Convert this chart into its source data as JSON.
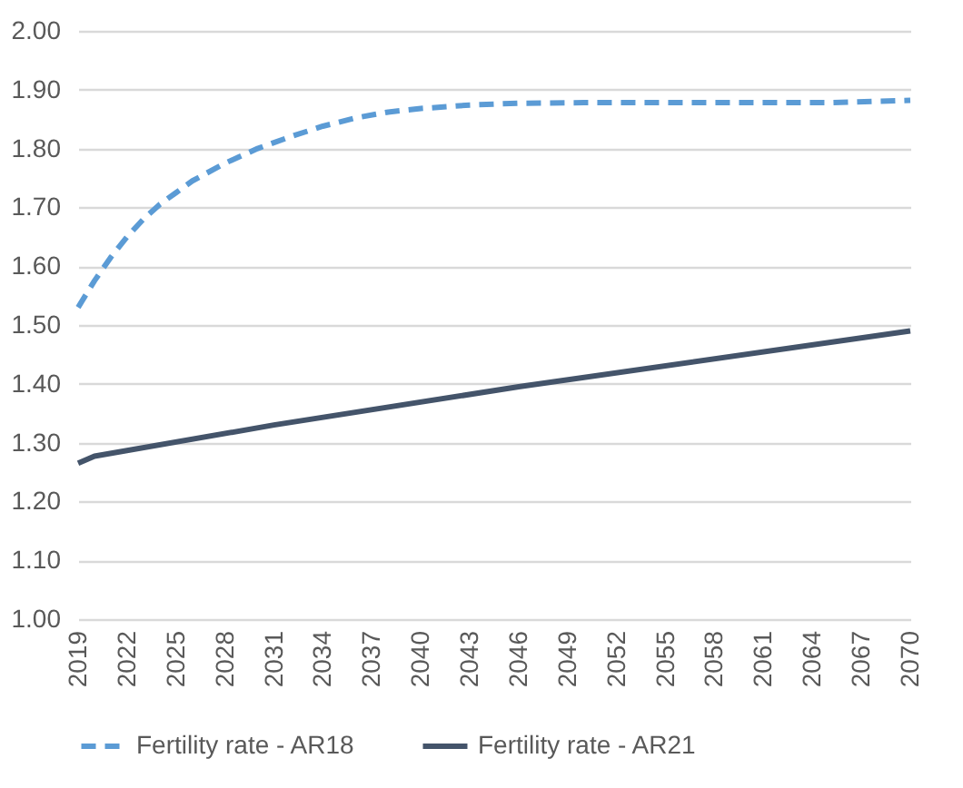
{
  "chart_data": {
    "type": "line",
    "xlim": [
      2019,
      2070
    ],
    "xticks": [
      2019,
      2022,
      2025,
      2028,
      2031,
      2034,
      2037,
      2040,
      2043,
      2046,
      2049,
      2052,
      2055,
      2058,
      2061,
      2064,
      2067,
      2070
    ],
    "ylim": [
      1.0,
      2.0
    ],
    "yticks": [
      {
        "value": 1.0,
        "label": "1.00"
      },
      {
        "value": 1.1,
        "label": "1.10"
      },
      {
        "value": 1.2,
        "label": "1.20"
      },
      {
        "value": 1.3,
        "label": "1.30"
      },
      {
        "value": 1.4,
        "label": "1.40"
      },
      {
        "value": 1.5,
        "label": "1.50"
      },
      {
        "value": 1.6,
        "label": "1.60"
      },
      {
        "value": 1.7,
        "label": "1.70"
      },
      {
        "value": 1.8,
        "label": "1.80"
      },
      {
        "value": 1.9,
        "label": "1.90"
      },
      {
        "value": 2.0,
        "label": "2.00"
      }
    ],
    "grid": "y",
    "legend": "bottom",
    "series": [
      {
        "name": "Fertility rate - AR18",
        "color": "#5b9bd5",
        "line_style": "dashed",
        "x": [
          2019,
          2020,
          2021,
          2022,
          2023,
          2024,
          2025,
          2026,
          2028,
          2030,
          2032,
          2034,
          2036,
          2038,
          2040,
          2043,
          2046,
          2050,
          2060,
          2065,
          2070
        ],
        "values": [
          1.53,
          1.575,
          1.615,
          1.65,
          1.68,
          1.705,
          1.725,
          1.745,
          1.775,
          1.8,
          1.82,
          1.838,
          1.852,
          1.862,
          1.868,
          1.874,
          1.877,
          1.878,
          1.878,
          1.878,
          1.882
        ]
      },
      {
        "name": "Fertility rate - AR21",
        "color": "#44546a",
        "line_style": "solid",
        "x": [
          2019,
          2020,
          2031,
          2046,
          2070
        ],
        "values": [
          1.265,
          1.277,
          1.33,
          1.395,
          1.49
        ]
      }
    ]
  }
}
